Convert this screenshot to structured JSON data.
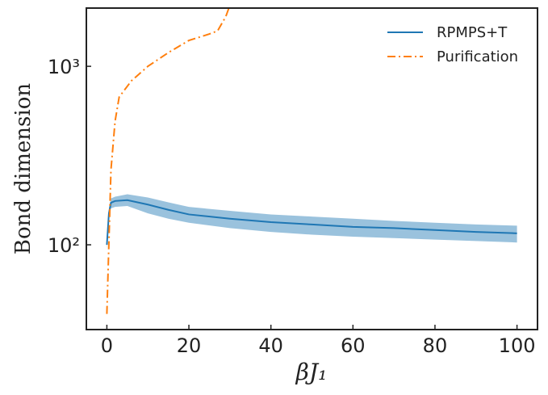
{
  "chart_data": {
    "type": "line",
    "xlabel": "βJ₁",
    "ylabel": "Bond dimension",
    "xlim": [
      -5,
      105
    ],
    "ylim": [
      33.5,
      2120
    ],
    "yscale": "log",
    "xticks": [
      0,
      20,
      40,
      60,
      80,
      100
    ],
    "yticks": [
      {
        "value": 100,
        "label": "10²"
      },
      {
        "value": 1000,
        "label": "10³"
      }
    ],
    "legend": "upper right",
    "series": [
      {
        "name": "RPMPS+T",
        "color": "#1f77b4",
        "style": "solid",
        "x": [
          0,
          0.5,
          1,
          2,
          5,
          10,
          15,
          20,
          30,
          40,
          50,
          60,
          70,
          80,
          90,
          100
        ],
        "values": [
          100,
          150,
          172,
          176,
          178,
          168,
          157,
          148,
          140,
          134,
          130,
          126,
          124,
          121,
          118,
          116
        ],
        "lower": [
          95,
          140,
          160,
          163,
          165,
          150,
          140,
          133,
          124,
          118,
          114,
          111,
          109,
          107,
          105,
          103
        ],
        "upper": [
          106,
          160,
          182,
          186,
          192,
          184,
          173,
          163,
          155,
          148,
          144,
          140,
          136,
          133,
          130,
          128
        ]
      },
      {
        "name": "Purification",
        "color": "#ff7f0e",
        "style": "dashdot",
        "x": [
          0,
          0.5,
          1,
          2,
          3,
          6,
          10,
          15,
          20,
          25,
          27,
          29,
          30,
          31
        ],
        "values": [
          41,
          103,
          263,
          492,
          673,
          830,
          1000,
          1194,
          1396,
          1517,
          1580,
          1900,
          2200,
          2500
        ]
      }
    ]
  }
}
